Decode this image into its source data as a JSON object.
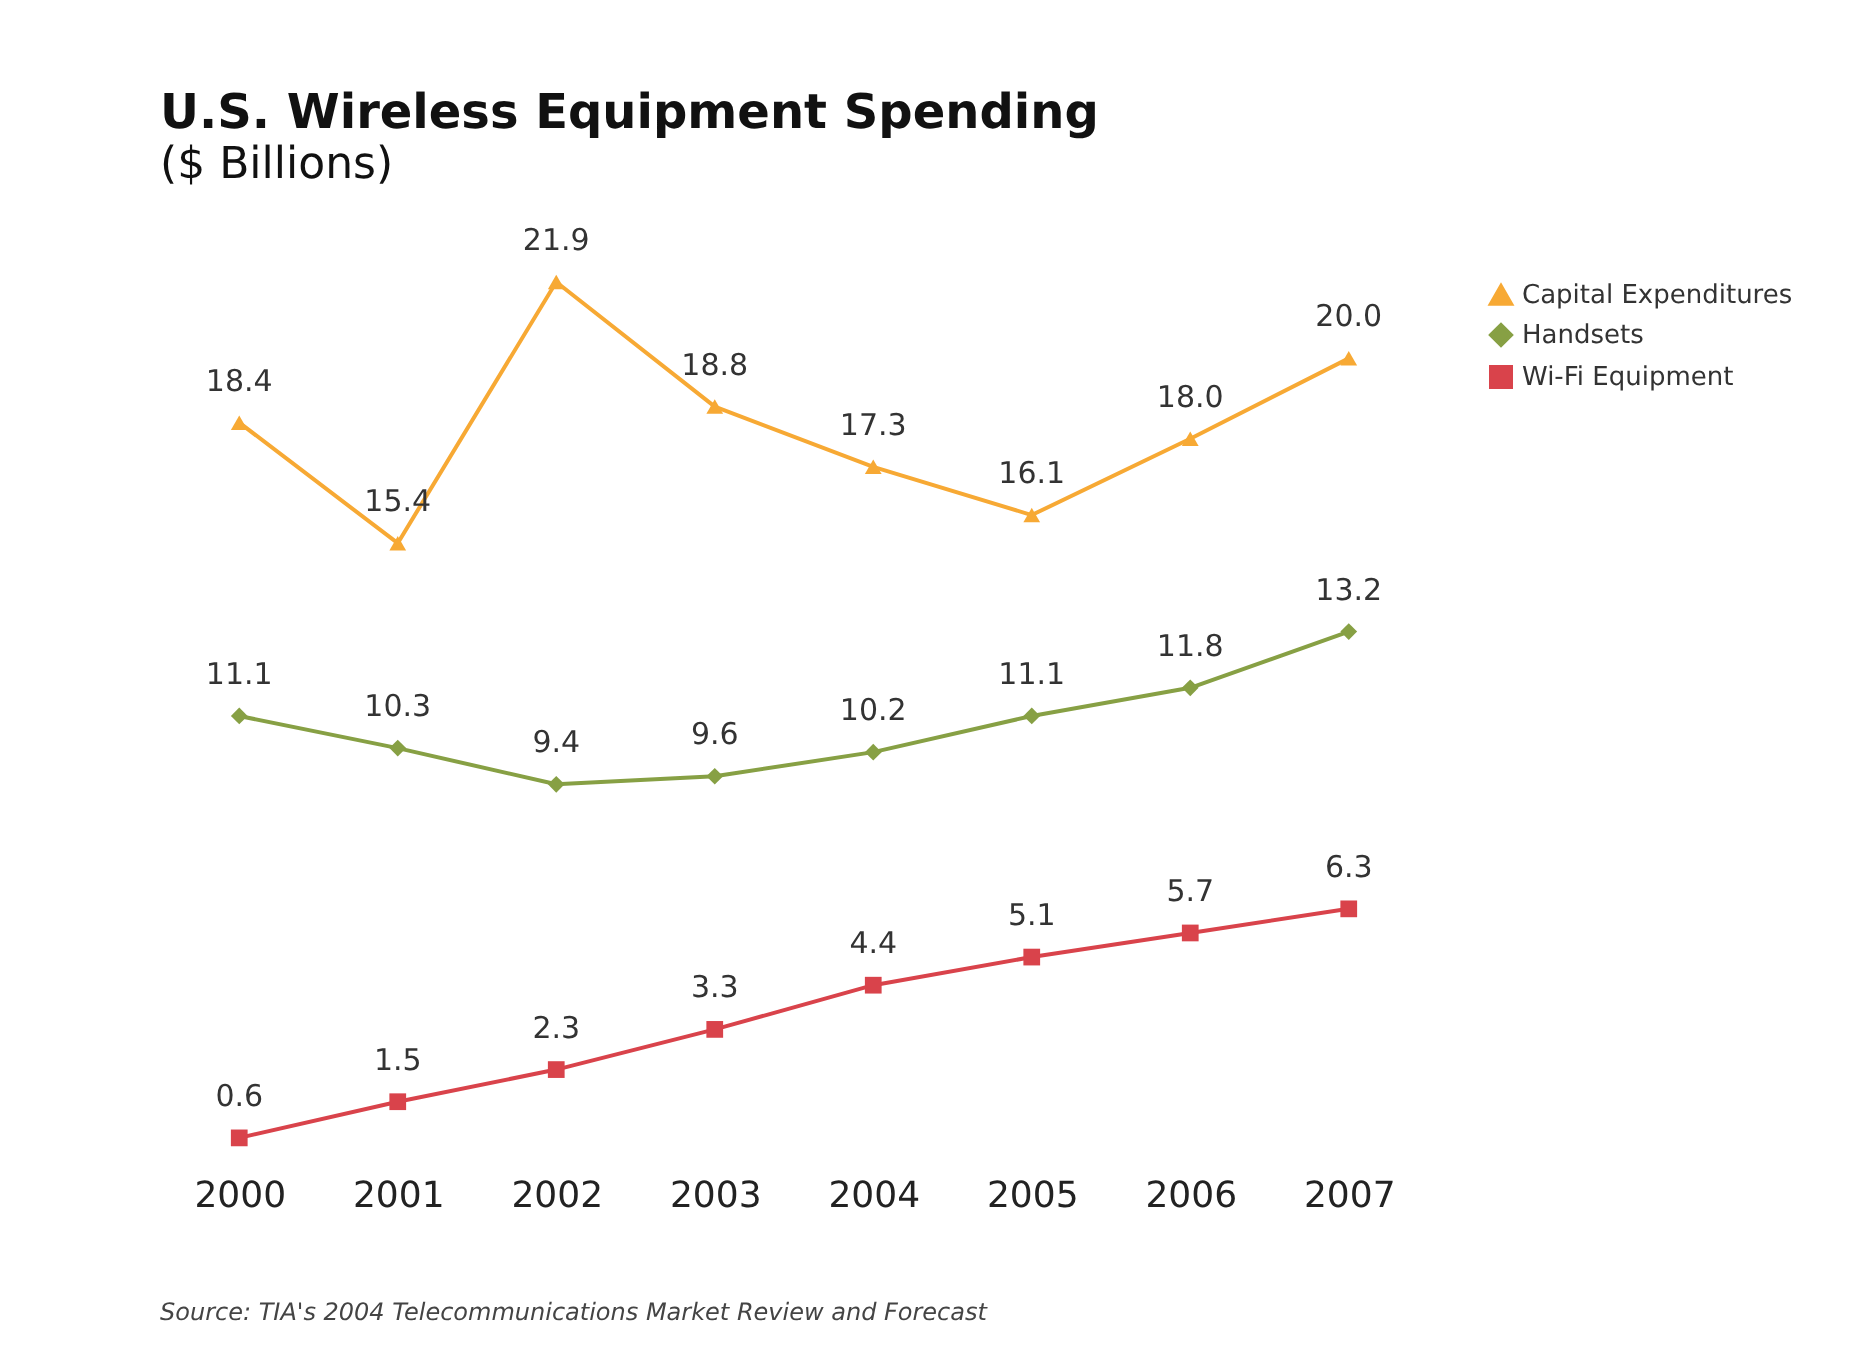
{
  "chart_data": {
    "type": "line",
    "title": "U.S. Wireless Equipment Spending",
    "subtitle": "($ Billions)",
    "categories": [
      "2000",
      "2001",
      "2002",
      "2003",
      "2004",
      "2005",
      "2006",
      "2007"
    ],
    "series": [
      {
        "name": "Capital Expenditures",
        "color": "#f7a934",
        "marker": "triangle",
        "values": [
          18.4,
          15.4,
          21.9,
          18.8,
          17.3,
          16.1,
          18.0,
          20.0
        ],
        "value_labels": [
          "18.4",
          "15.4",
          "21.9",
          "18.8",
          "17.3",
          "16.1",
          "18.0",
          "20.0"
        ]
      },
      {
        "name": "Handsets",
        "color": "#87a044",
        "marker": "diamond",
        "values": [
          11.1,
          10.3,
          9.4,
          9.6,
          10.2,
          11.1,
          11.8,
          13.2
        ],
        "value_labels": [
          "11.1",
          "10.3",
          "9.4",
          "9.6",
          "10.2",
          "11.1",
          "11.8",
          "13.2"
        ]
      },
      {
        "name": "Wi-Fi Equipment",
        "color": "#d9434b",
        "marker": "square",
        "values": [
          0.6,
          1.5,
          2.3,
          3.3,
          4.4,
          5.1,
          5.7,
          6.3
        ],
        "value_labels": [
          "0.6",
          "1.5",
          "2.3",
          "3.3",
          "4.4",
          "5.1",
          "5.7",
          "6.3"
        ]
      }
    ],
    "legend": "right",
    "grid": false,
    "line_style": "solid",
    "tick_labels": "x",
    "annotations": [
      "Source: TIA's 2004 Telecommunications Market Review and Forecast"
    ]
  }
}
